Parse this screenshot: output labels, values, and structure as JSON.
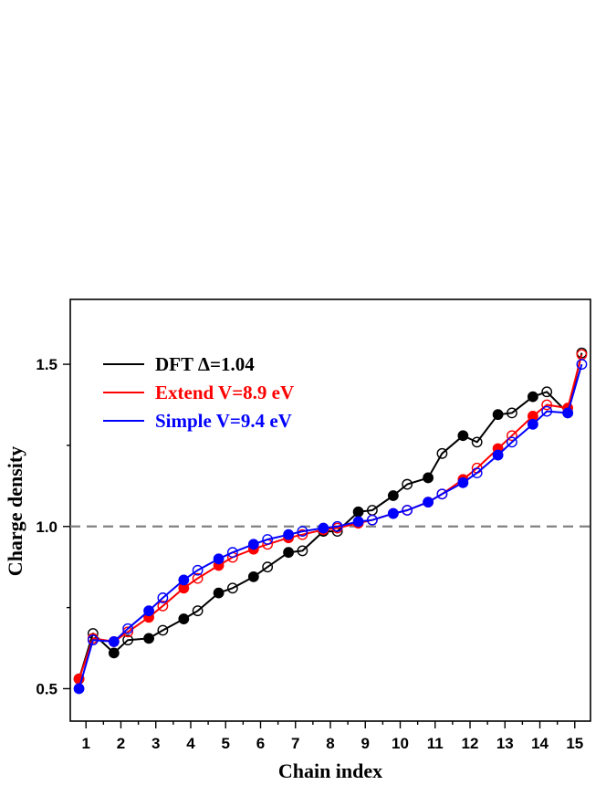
{
  "chart_data": {
    "type": "line",
    "xlabel": "Chain index",
    "ylabel": "Charge density",
    "xlim": [
      0.55,
      15.45
    ],
    "ylim": [
      0.4,
      1.7
    ],
    "x_ticks": [
      1,
      2,
      3,
      4,
      5,
      6,
      7,
      8,
      9,
      10,
      11,
      12,
      13,
      14,
      15
    ],
    "y_ticks": [
      0.5,
      1.0,
      1.5
    ],
    "y_tick_labels": [
      "0.5",
      "1.0",
      "1.5"
    ],
    "reference_line": {
      "y": 1.0,
      "style": "dashed",
      "color": "#808080"
    },
    "legend_position": "top-left",
    "marker_convention": "filled circles at x-0.2, open circles at x+0.2 for each chain index",
    "series": [
      {
        "name": "DFT Δ=1.04",
        "color": "#000000",
        "x": [
          0.8,
          1.2,
          1.8,
          2.2,
          2.8,
          3.2,
          3.8,
          4.2,
          4.8,
          5.2,
          5.8,
          6.2,
          6.8,
          7.2,
          7.8,
          8.2,
          8.8,
          9.2,
          9.8,
          10.2,
          10.8,
          11.2,
          11.8,
          12.2,
          12.8,
          13.2,
          13.8,
          14.2,
          14.8,
          15.2
        ],
        "y": [
          0.53,
          0.67,
          0.61,
          0.65,
          0.655,
          0.68,
          0.715,
          0.74,
          0.795,
          0.81,
          0.845,
          0.875,
          0.92,
          0.925,
          0.985,
          0.985,
          1.045,
          1.05,
          1.095,
          1.13,
          1.15,
          1.225,
          1.28,
          1.26,
          1.345,
          1.35,
          1.4,
          1.415,
          1.35,
          1.535
        ]
      },
      {
        "name": "Extend V=8.9 eV",
        "color": "#ff0000",
        "x": [
          0.8,
          1.2,
          1.8,
          2.2,
          2.8,
          3.2,
          3.8,
          4.2,
          4.8,
          5.2,
          5.8,
          6.2,
          6.8,
          7.2,
          7.8,
          8.2,
          8.8,
          9.2,
          9.8,
          10.2,
          10.8,
          11.2,
          11.8,
          12.2,
          12.8,
          13.2,
          13.8,
          14.2,
          14.8,
          15.2
        ],
        "y": [
          0.53,
          0.655,
          0.645,
          0.675,
          0.72,
          0.755,
          0.81,
          0.84,
          0.88,
          0.905,
          0.93,
          0.945,
          0.965,
          0.975,
          0.99,
          0.995,
          1.01,
          1.02,
          1.04,
          1.05,
          1.075,
          1.1,
          1.145,
          1.18,
          1.24,
          1.28,
          1.34,
          1.375,
          1.365,
          1.53
        ]
      },
      {
        "name": "Simple V=9.4 eV",
        "color": "#0000ff",
        "x": [
          0.8,
          1.2,
          1.8,
          2.2,
          2.8,
          3.2,
          3.8,
          4.2,
          4.8,
          5.2,
          5.8,
          6.2,
          6.8,
          7.2,
          7.8,
          8.2,
          8.8,
          9.2,
          9.8,
          10.2,
          10.8,
          11.2,
          11.8,
          12.2,
          12.8,
          13.2,
          13.8,
          14.2,
          14.8,
          15.2
        ],
        "y": [
          0.5,
          0.65,
          0.645,
          0.685,
          0.74,
          0.78,
          0.835,
          0.865,
          0.9,
          0.92,
          0.945,
          0.96,
          0.975,
          0.985,
          0.995,
          1.0,
          1.015,
          1.02,
          1.04,
          1.05,
          1.075,
          1.1,
          1.135,
          1.165,
          1.22,
          1.26,
          1.315,
          1.355,
          1.35,
          1.5
        ]
      }
    ]
  }
}
